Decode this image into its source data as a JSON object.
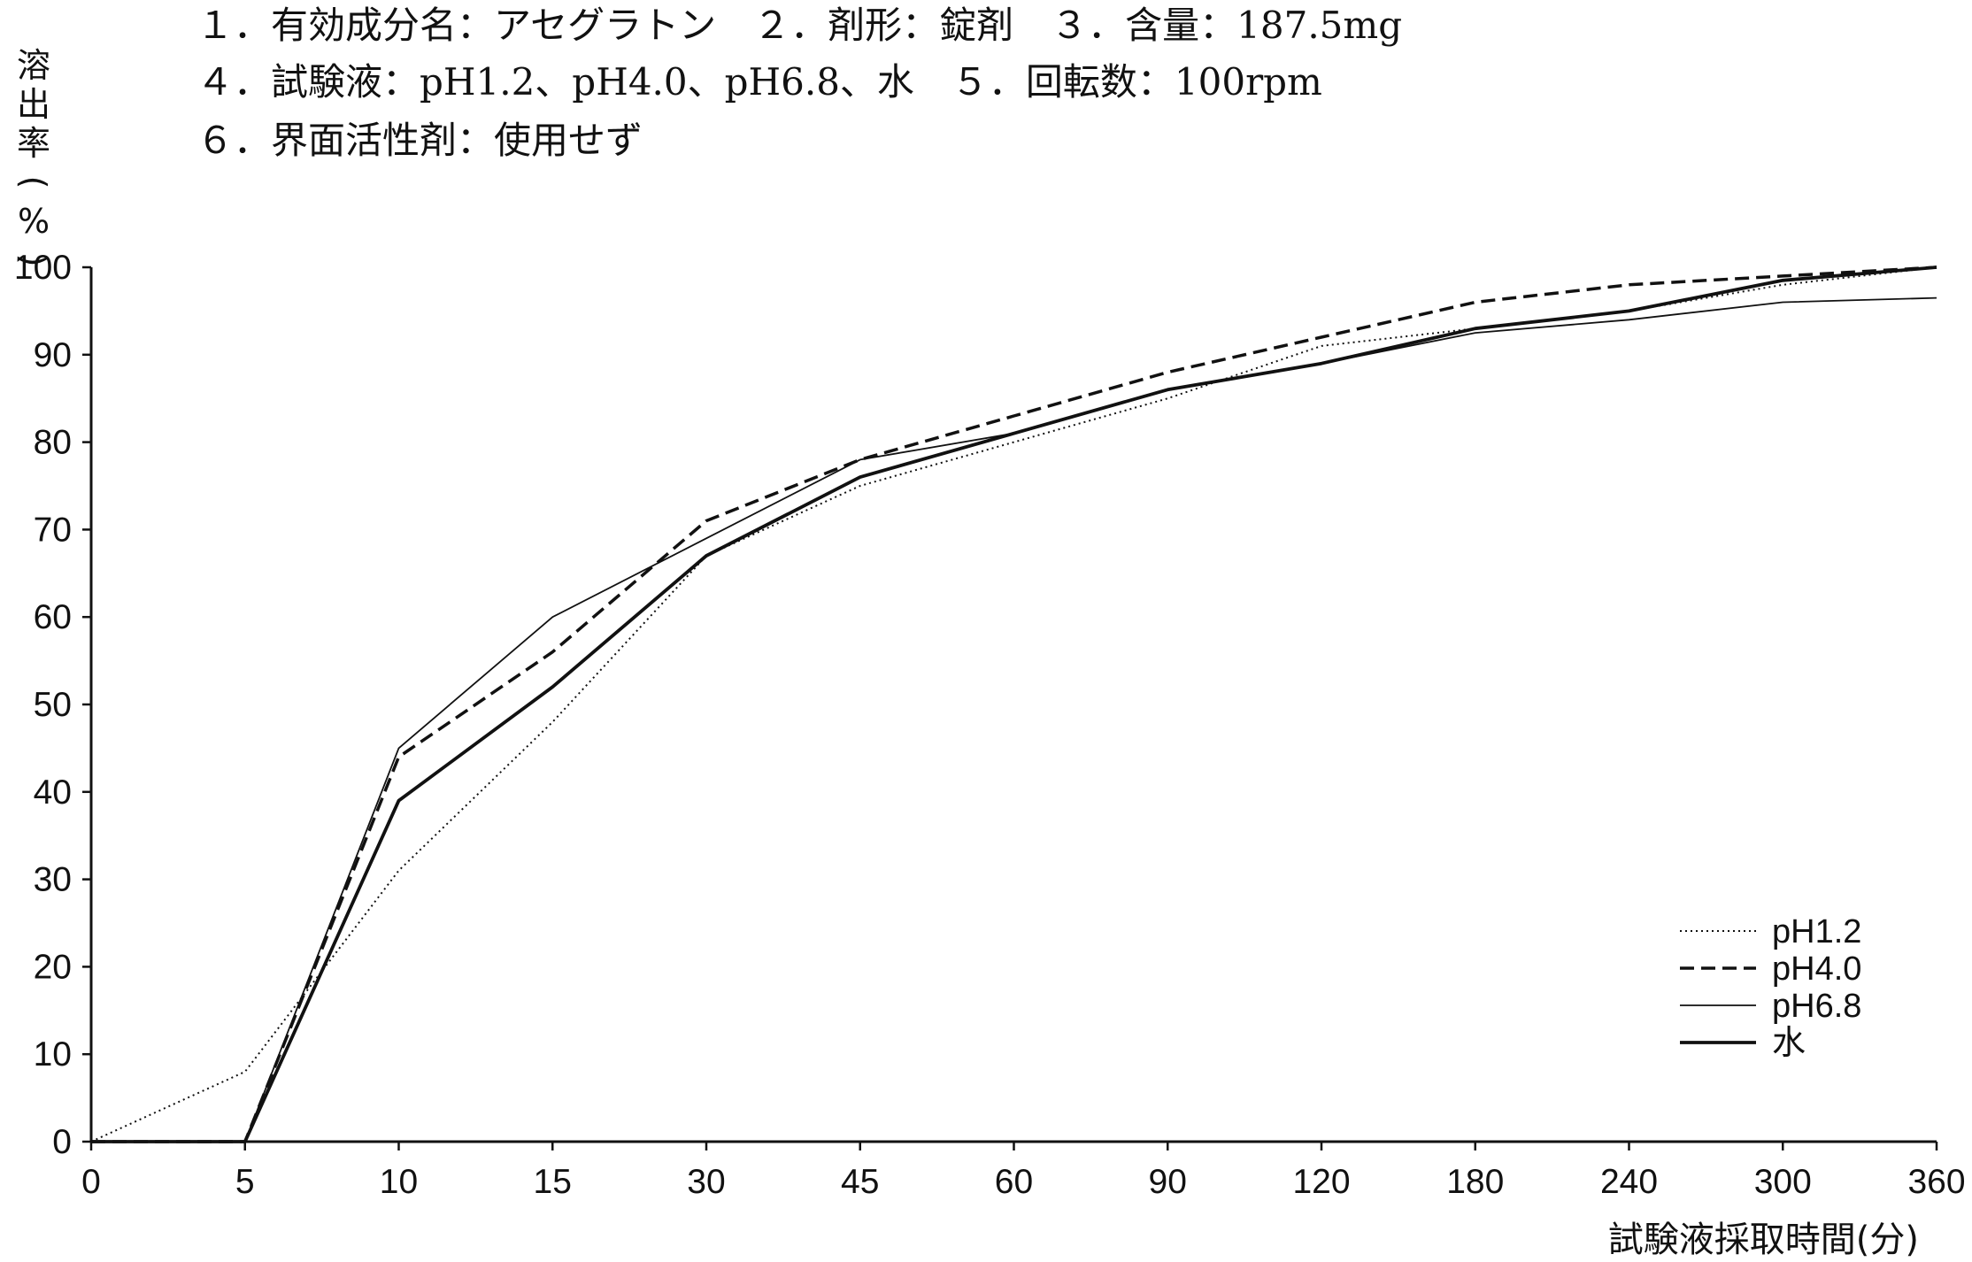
{
  "header": {
    "line1": "１．有効成分名：アセグラトン　２．剤形：錠剤　３．含量：187.5mg",
    "line2": "４．試験液：pH1.2、pH4.0、pH6.8、水　５．回転数：100rpm",
    "line3": "６．界面活性剤：使用せず"
  },
  "chart_data": {
    "type": "line",
    "ylabel": "溶出率(%)",
    "xlabel": "試験液採取時間(分)",
    "categories": [
      "0",
      "5",
      "10",
      "15",
      "30",
      "45",
      "60",
      "90",
      "120",
      "180",
      "240",
      "300",
      "360"
    ],
    "ylim": [
      0,
      100
    ],
    "yticks": [
      0,
      10,
      20,
      30,
      40,
      50,
      60,
      70,
      80,
      90,
      100
    ],
    "grid": false,
    "legend_position": "bottom-right",
    "series": [
      {
        "name": "pH1.2",
        "style": "dotted",
        "values": [
          0,
          8,
          31,
          48,
          67,
          75,
          80,
          85,
          91,
          93,
          95,
          98,
          100
        ]
      },
      {
        "name": "pH4.0",
        "style": "dashed",
        "values": [
          0,
          0,
          44,
          56,
          71,
          78,
          83,
          88,
          92,
          96,
          98,
          99,
          100
        ]
      },
      {
        "name": "pH6.8",
        "style": "thin",
        "values": [
          0,
          0,
          45,
          60,
          69,
          78,
          81,
          86,
          89,
          92.5,
          94,
          96,
          96.5
        ]
      },
      {
        "name": "水",
        "style": "thick",
        "values": [
          0,
          0,
          39,
          52,
          67,
          76,
          81,
          86,
          89,
          93,
          95,
          98.5,
          100
        ]
      }
    ]
  }
}
